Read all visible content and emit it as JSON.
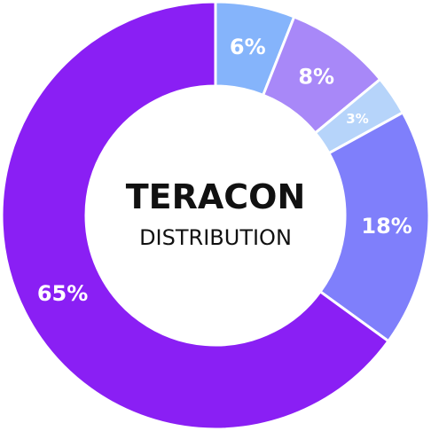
{
  "chart_data": {
    "type": "pie",
    "title": "TERACON",
    "subtitle": "DISTRIBUTION",
    "donut": true,
    "slices": [
      {
        "label": "6%",
        "value": 6,
        "color": "#85b4fb"
      },
      {
        "label": "8%",
        "value": 8,
        "color": "#a888f8"
      },
      {
        "label": "3%",
        "value": 3,
        "color": "#b6d4fa"
      },
      {
        "label": "18%",
        "value": 18,
        "color": "#7f7ffb"
      },
      {
        "label": "65%",
        "value": 65,
        "color": "#8a1ff4"
      }
    ]
  }
}
